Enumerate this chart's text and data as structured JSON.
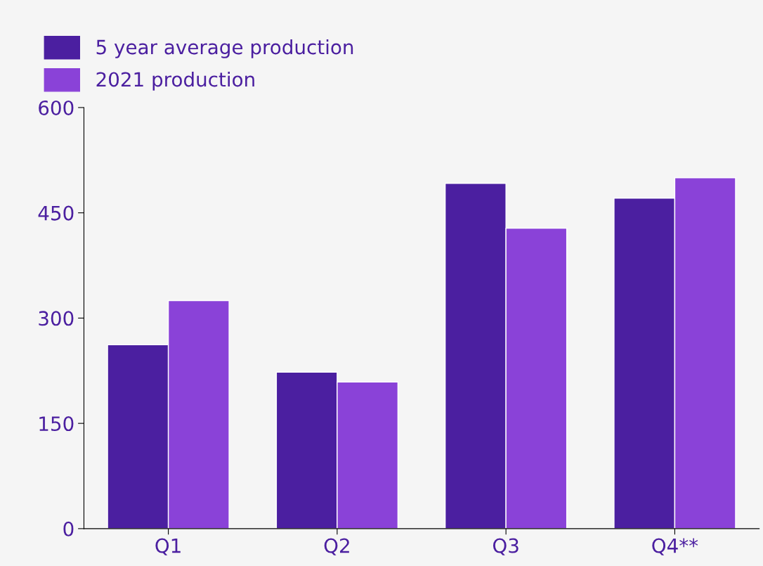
{
  "chart_data": {
    "type": "bar",
    "categories": [
      "Q1",
      "Q2",
      "Q3",
      "Q4**"
    ],
    "series": [
      {
        "name": "5 year average production",
        "color": "#4b1fa0",
        "values": [
          262,
          223,
          492,
          471
        ]
      },
      {
        "name": "2021 production",
        "color": "#8a42d8",
        "values": [
          325,
          209,
          428,
          500
        ]
      }
    ],
    "ylim": [
      0,
      600
    ],
    "yticks": [
      0,
      150,
      300,
      450,
      600
    ],
    "grid": false,
    "legend": "top left"
  }
}
